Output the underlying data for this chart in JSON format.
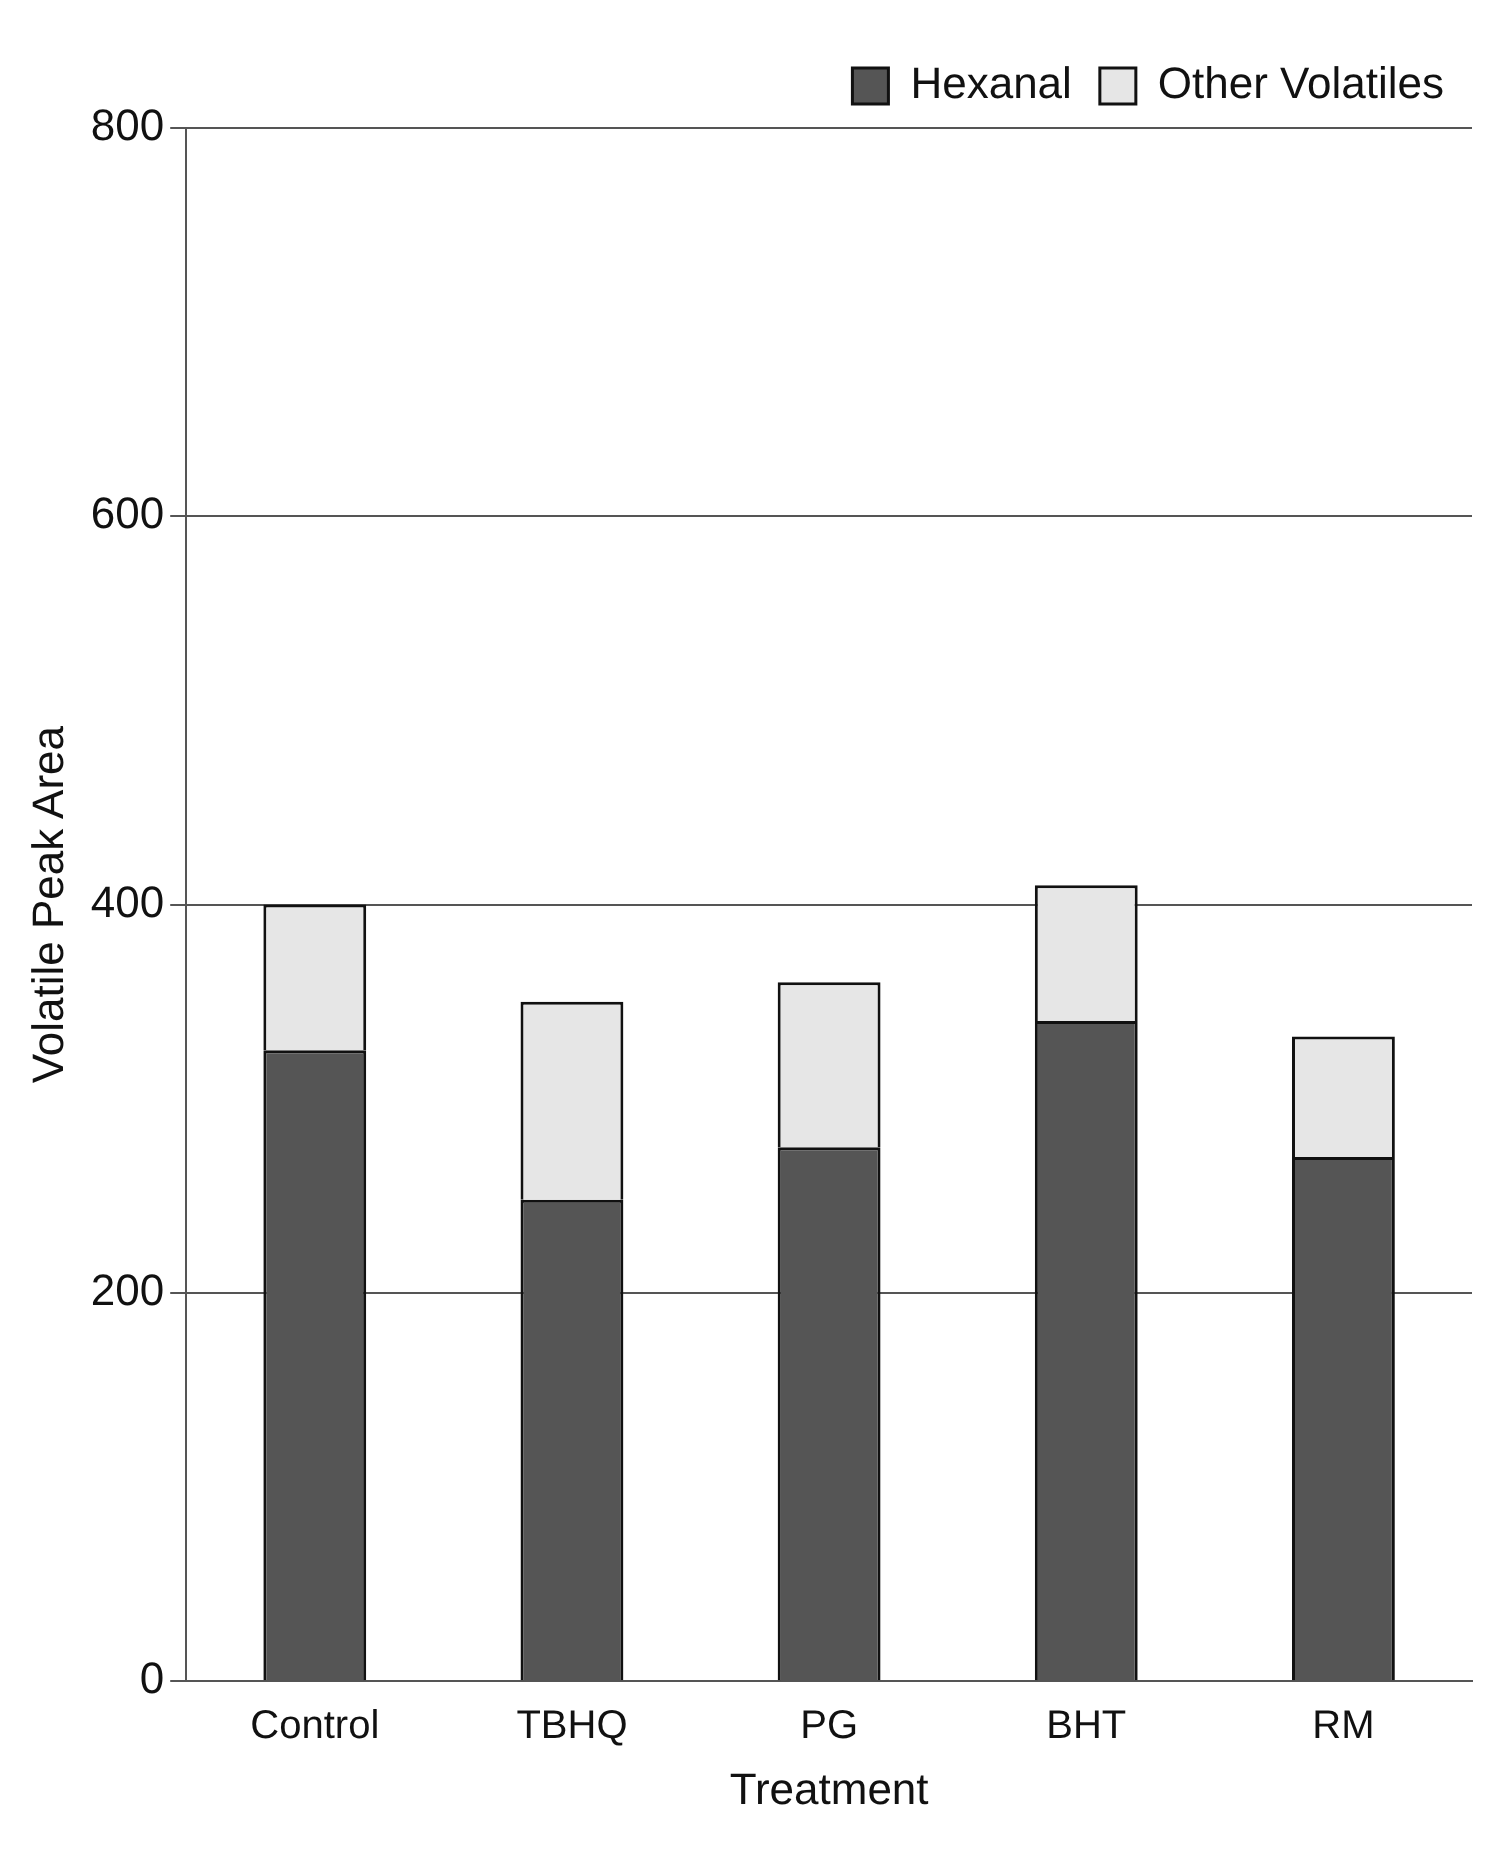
{
  "chart_data": {
    "type": "bar",
    "stacked": true,
    "xlabel": "Treatment",
    "ylabel": "Volatile Peak Area",
    "categories": [
      "Control",
      "TBHQ",
      "PG",
      "BHT",
      "RM"
    ],
    "series": [
      {
        "name": "Hexanal",
        "color": "#555555",
        "values": [
          325,
          248,
          275,
          340,
          270
        ]
      },
      {
        "name": "Other Volatiles",
        "color": "#e6e6e6",
        "values": [
          75,
          102,
          85,
          70,
          62
        ]
      }
    ],
    "ylim": [
      0,
      800
    ],
    "yticks": [
      0,
      200,
      400,
      600,
      800
    ],
    "grid": "y",
    "legend": "top right"
  }
}
